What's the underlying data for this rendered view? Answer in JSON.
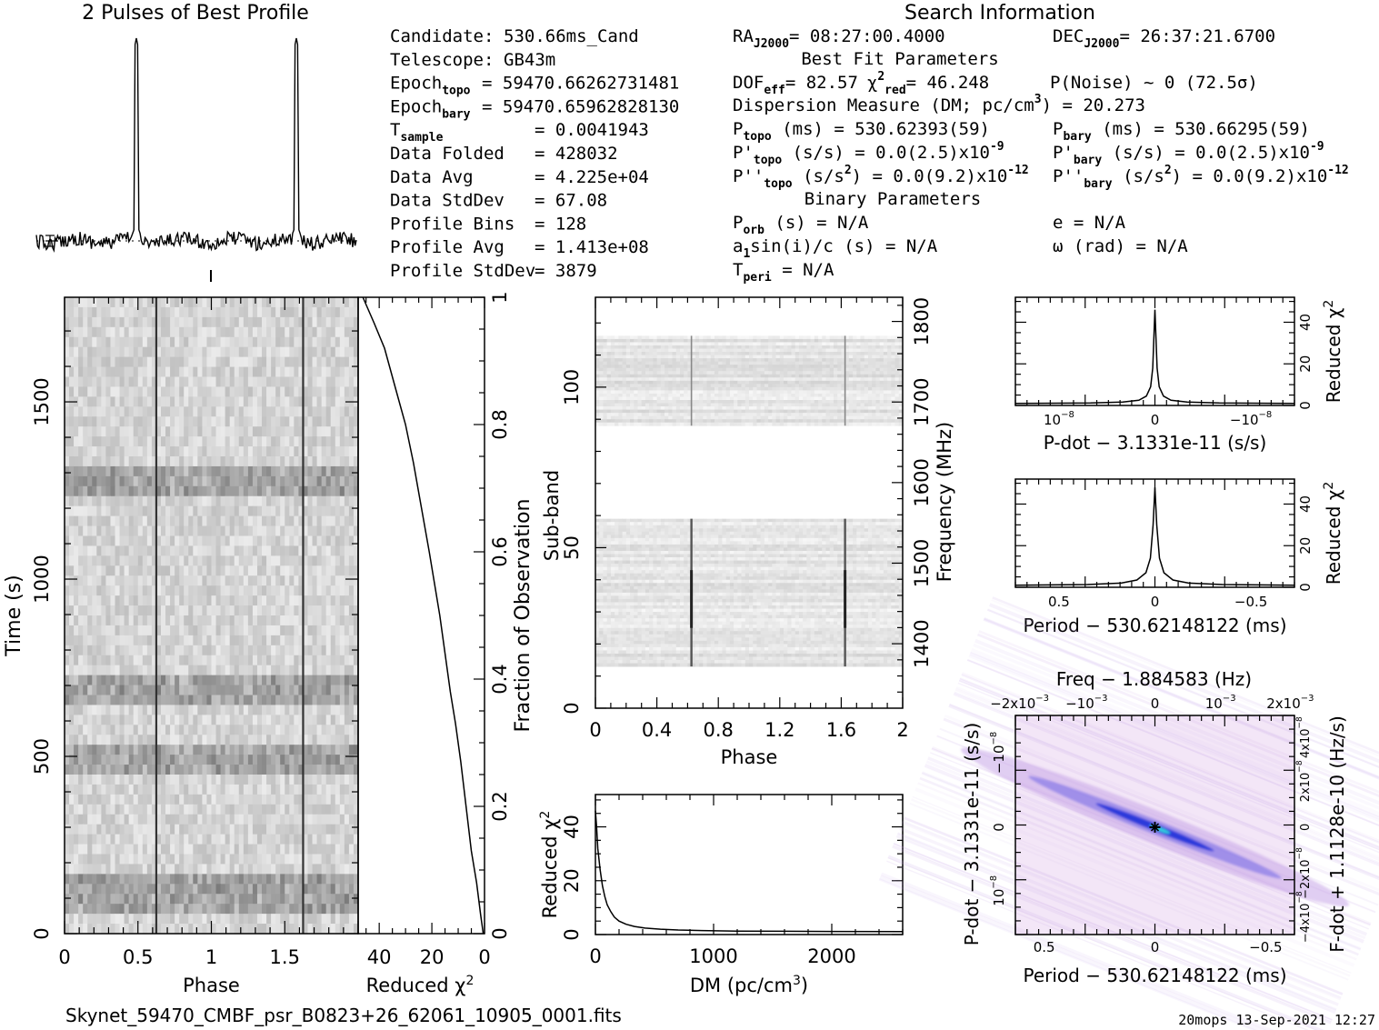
{
  "title_profile": "2 Pulses of Best Profile",
  "title_search": "Search Information",
  "filename": "Skynet_59470_CMBF_psr_B0823+26_62061_10905_0001.fits",
  "footer_stamp": "20mops 13-Sep-2021 12:27",
  "info_left": [
    {
      "label": "Candidate:",
      "value": "530.66ms_Cand"
    },
    {
      "label": "Telescope:",
      "value": "GB43m"
    },
    {
      "label": "Epoch",
      "sub": "topo",
      "value": "= 59470.66262731481"
    },
    {
      "label": "Epoch",
      "sub": "bary",
      "value": "= 59470.65962828130"
    },
    {
      "label": "T",
      "sub": "sample",
      "value": "=   0.0041943"
    },
    {
      "label": "Data Folded",
      "value": "=   428032"
    },
    {
      "label": "Data Avg",
      "value": "=   4.225e+04"
    },
    {
      "label": "Data StdDev",
      "value": "=   67.08"
    },
    {
      "label": "Profile Bins",
      "value": "=   128"
    },
    {
      "label": "Profile Avg",
      "value": "=   1.413e+08"
    },
    {
      "label": "Profile StdDev",
      "value": "=   3879"
    }
  ],
  "info_ra": "RA",
  "info_ra_sub": "J2000",
  "info_ra_val": "= 08:27:00.4000",
  "info_dec": "DEC",
  "info_dec_sub": "J2000",
  "info_dec_val": "= 26:37:21.6700",
  "best_fit_title": "Best Fit Parameters",
  "binary_title": "Binary Parameters",
  "dof_line": "DOF",
  "dof_sub": "eff",
  "dof_val": "= 82.57",
  "chi_label": "χ",
  "chi_sub": "red",
  "chi_val": "= 46.248",
  "pnoise": "P(Noise) ~ 0   (72.5σ)",
  "dm_line": "Dispersion Measure (DM; pc/cm",
  "dm_val": ") = 20.273",
  "ptopo_label": "P",
  "ptopo_sub": "topo",
  "ptopo_val": " (ms) =  530.62393(59)",
  "pbary_label": "P",
  "pbary_sub": "bary",
  "pbary_val": " (ms) =  530.66295(59)",
  "pdtopo_label": "P'",
  "pdtopo_val": " (s/s) = 0.0(2.5)x10",
  "pdtopo_exp": "-9",
  "pdbary_label": "P'",
  "pdbary_val": " (s/s) = 0.0(2.5)x10",
  "pdbary_exp": "-9",
  "pddtopo_label": "P''",
  "pddtopo_val": " (s/s",
  "pddtopo_val2": ") = 0.0(9.2)x10",
  "pddtopo_exp": "-12",
  "pddbary_label": "P''",
  "pddbary_val": " (s/s",
  "pddbary_val2": ") = 0.0(9.2)x10",
  "pddbary_exp": "-12",
  "porb_label": "P",
  "porb_sub": "orb",
  "porb_val": " (s) = N/A",
  "asini_label": "a",
  "asini_sub": "1",
  "asini_val": "sin(i)/c (s) = N/A",
  "tperi_label": "T",
  "tperi_sub": "peri",
  "tperi_val": " = N/A",
  "ecc": "e = N/A",
  "omega": "ω (rad) = N/A",
  "colors": {
    "ink": "#000000",
    "greyscale_dark": "#606060",
    "pv_light": "#f3e6f7",
    "pv_mid": "#c6a6e8",
    "pv_deep": "#1a2ad8",
    "pv_accent": "#33ccdd"
  },
  "chart_data": [
    {
      "type": "line",
      "name": "profile",
      "title": "2 Pulses of Best Profile",
      "xlim": [
        0,
        2
      ],
      "pulse_phases": [
        0.625,
        1.625
      ],
      "profile_avg_line": "dotted"
    },
    {
      "type": "heatmap",
      "name": "time-phase",
      "xlabel": "Phase",
      "ylabel": "Time (s)",
      "xlim": [
        0,
        2
      ],
      "ylim": [
        0,
        1795
      ],
      "xticks": [
        "0",
        "0.5",
        "1",
        "1.5"
      ],
      "yticks": [
        "0",
        "500",
        "1000",
        "1500"
      ],
      "pulse_phases": [
        0.625,
        1.625
      ],
      "bright_bands_time": [
        115,
        500,
        680,
        1270
      ]
    },
    {
      "type": "line",
      "name": "cumulative-chi2",
      "xlabel": "Reduced χ",
      "xlabel_exp": "2",
      "ylabel": "Fraction of Observation",
      "xlim": [
        48,
        0
      ],
      "ylim": [
        0,
        1
      ],
      "xticks": [
        "40",
        "20",
        "0"
      ],
      "yticks": [
        "0",
        "0.2",
        "0.4",
        "0.6",
        "0.8",
        "1"
      ],
      "x": [
        0.5,
        1.5,
        3,
        5,
        7,
        9,
        11,
        13,
        15,
        17,
        19,
        21,
        24,
        27,
        30,
        34,
        38,
        42,
        46.2
      ],
      "y": [
        0.0,
        0.03,
        0.08,
        0.13,
        0.2,
        0.27,
        0.33,
        0.38,
        0.44,
        0.5,
        0.55,
        0.6,
        0.67,
        0.74,
        0.8,
        0.86,
        0.92,
        0.96,
        1.0
      ]
    },
    {
      "type": "heatmap",
      "name": "subband-phase",
      "xlabel": "Phase",
      "ylabel": "Sub-band",
      "ylabel_right": "Frequency (MHz)",
      "xlim": [
        0,
        2
      ],
      "ylim": [
        0,
        128
      ],
      "xticks": [
        "0",
        "0.4",
        "0.8",
        "1.2",
        "1.6",
        "2"
      ],
      "yticks": [
        "0",
        "50",
        "100"
      ],
      "yticks_right": [
        "1400",
        "1500",
        "1600",
        "1700",
        "1800"
      ],
      "masked_subbands": [
        [
          0,
          13
        ],
        [
          59,
          88
        ],
        [
          116,
          128
        ]
      ],
      "pulse_phases": [
        0.625,
        1.625
      ]
    },
    {
      "type": "line",
      "name": "dm-chi2",
      "xlabel": "DM (pc/cm",
      "xlabel_exp": "3",
      "xlabel_end": ")",
      "ylabel": "Reduced χ",
      "ylabel_exp": "2",
      "xlim": [
        0,
        2600
      ],
      "ylim": [
        0,
        52
      ],
      "xticks": [
        "0",
        "1000",
        "2000"
      ],
      "yticks": [
        "0",
        "20",
        "40"
      ],
      "x": [
        0,
        10,
        20,
        40,
        60,
        80,
        100,
        130,
        160,
        200,
        260,
        330,
        420,
        550,
        700,
        900,
        1200,
        1600,
        2000,
        2600
      ],
      "y": [
        46,
        40,
        32,
        24,
        18,
        14,
        11,
        8.5,
        6.5,
        5,
        3.8,
        3,
        2.4,
        2,
        1.7,
        1.5,
        1.3,
        1.2,
        1.15,
        1.1
      ]
    },
    {
      "type": "line",
      "name": "pdot-chi2",
      "xlabel": "P-dot − 3.1331e-11 (s/s)",
      "ylabel": "Reduced χ",
      "ylabel_exp": "2",
      "xlim": [
        -1.3e-08,
        1.3e-08
      ],
      "ylim": [
        0,
        52
      ],
      "xticks": [
        "10",
        "0",
        "−10"
      ],
      "xticks_exp": [
        "−8",
        "",
        "−8"
      ],
      "yticks": [
        "0",
        "20",
        "40"
      ],
      "x": [
        -1.3e-08,
        -6e-09,
        -3e-09,
        -1.5e-09,
        -8e-10,
        -4e-10,
        -2e-10,
        0,
        2e-10,
        4e-10,
        8e-10,
        1.5e-09,
        3e-09,
        6e-09,
        1.3e-08
      ],
      "y": [
        1,
        1.2,
        1.6,
        2.5,
        4.5,
        9,
        18,
        46,
        18,
        9,
        4.5,
        2.5,
        1.6,
        1.2,
        1
      ]
    },
    {
      "type": "line",
      "name": "period-chi2",
      "xlabel": "Period − 530.62148122 (ms)",
      "ylabel": "Reduced χ",
      "ylabel_exp": "2",
      "xlim": [
        0.62,
        -0.62
      ],
      "ylim": [
        0,
        52
      ],
      "xticks": [
        "0.5",
        "0",
        "−0.5"
      ],
      "yticks": [
        "0",
        "20",
        "40"
      ],
      "x": [
        0.62,
        0.3,
        0.15,
        0.08,
        0.04,
        0.02,
        0.008,
        0,
        -0.008,
        -0.02,
        -0.04,
        -0.08,
        -0.15,
        -0.3,
        -0.62
      ],
      "y": [
        1,
        1.3,
        2,
        3.5,
        7,
        14,
        30,
        48,
        30,
        14,
        7,
        3.5,
        2,
        1.3,
        1
      ]
    },
    {
      "type": "heatmap",
      "name": "period-pdot",
      "title": "Freq − 1.884583 (Hz)",
      "xlabel": "Period − 530.62148122 (ms)",
      "ylabel": "P-dot − 3.1331e-11 (s/s)",
      "ylabel_right": "F-dot + 1.1128e-10 (Hz/s)",
      "xlim": [
        0.62,
        -0.62
      ],
      "xticks": [
        "0.5",
        "0",
        "−0.5"
      ],
      "yticks": [
        "10",
        "0",
        "−10"
      ],
      "yticks_exp": [
        "−8",
        "",
        "−8"
      ],
      "top_ticks": [
        "−2x10",
        "−10",
        "0",
        "10",
        "2x10"
      ],
      "top_ticks_exp": [
        "−3",
        "−3",
        "",
        "−3",
        "−3"
      ],
      "right_ticks": [
        "−4x10",
        "−2x10",
        "0",
        "2x10",
        "4x10"
      ],
      "right_ticks_exp": [
        "−8",
        "−8",
        "",
        "−8",
        "−8"
      ],
      "best_point": [
        0,
        0
      ]
    }
  ]
}
